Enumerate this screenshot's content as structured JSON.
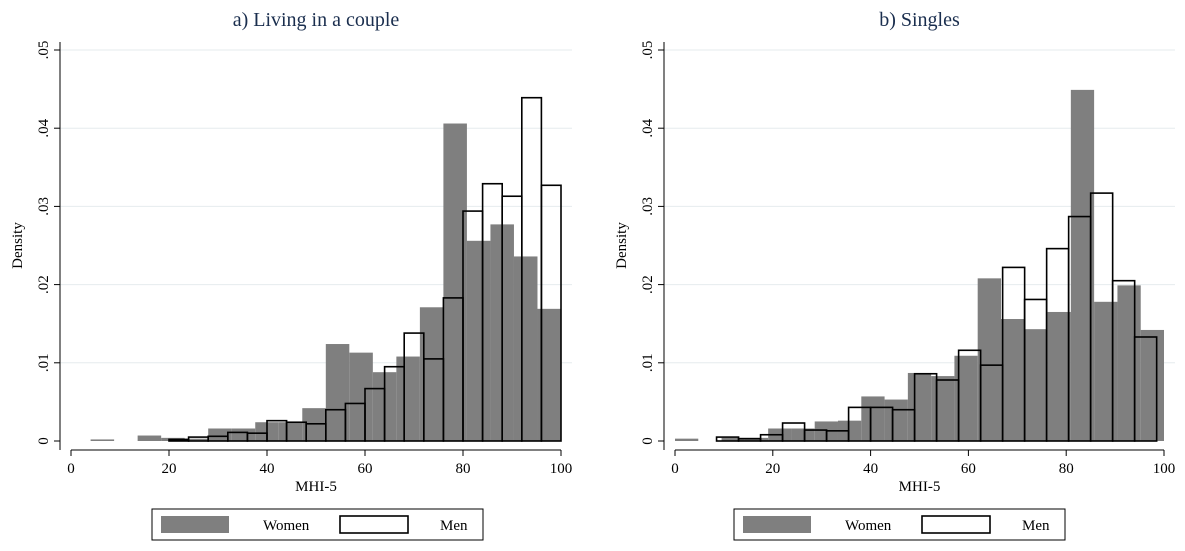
{
  "chart_data": [
    {
      "type": "bar",
      "title": "a) Living in a couple",
      "xlabel": "MHI-5",
      "ylabel": "Density",
      "xlim": [
        0,
        100
      ],
      "ylim": [
        0,
        0.05
      ],
      "x_ticks": [
        "0",
        "20",
        "40",
        "60",
        "80",
        "100"
      ],
      "y_ticks": [
        "0",
        ".01",
        ".02",
        ".03",
        ".04",
        ".05"
      ],
      "grid": true,
      "legend_position": "bottom",
      "series": [
        {
          "name": "Women",
          "color": "#7f7f7f",
          "fill": true,
          "bins": [
            {
              "x0": 4,
              "x1": 8.8,
              "y": 0.0002
            },
            {
              "x0": 13.6,
              "x1": 18.4,
              "y": 0.0007
            },
            {
              "x0": 18.4,
              "x1": 23.2,
              "y": 0.0004
            },
            {
              "x0": 23.2,
              "x1": 28,
              "y": 0.0003
            },
            {
              "x0": 28,
              "x1": 32.8,
              "y": 0.0016
            },
            {
              "x0": 32.8,
              "x1": 37.6,
              "y": 0.0016
            },
            {
              "x0": 37.6,
              "x1": 42.4,
              "y": 0.0024
            },
            {
              "x0": 42.4,
              "x1": 47.2,
              "y": 0.0024
            },
            {
              "x0": 47.2,
              "x1": 52,
              "y": 0.0042
            },
            {
              "x0": 52,
              "x1": 56.8,
              "y": 0.0124
            },
            {
              "x0": 56.8,
              "x1": 61.6,
              "y": 0.0113
            },
            {
              "x0": 61.6,
              "x1": 66.4,
              "y": 0.0088
            },
            {
              "x0": 66.4,
              "x1": 71.2,
              "y": 0.0108
            },
            {
              "x0": 71.2,
              "x1": 76,
              "y": 0.0171
            },
            {
              "x0": 76,
              "x1": 80.8,
              "y": 0.0406
            },
            {
              "x0": 80.8,
              "x1": 85.6,
              "y": 0.0256
            },
            {
              "x0": 85.6,
              "x1": 90.4,
              "y": 0.0277
            },
            {
              "x0": 90.4,
              "x1": 95.2,
              "y": 0.0236
            },
            {
              "x0": 95.2,
              "x1": 100,
              "y": 0.0169
            }
          ]
        },
        {
          "name": "Men",
          "color": "#000000",
          "fill": false,
          "bins": [
            {
              "x0": 20,
              "x1": 24,
              "y": 0.0002
            },
            {
              "x0": 24,
              "x1": 28,
              "y": 0.0005
            },
            {
              "x0": 28,
              "x1": 32,
              "y": 0.0006
            },
            {
              "x0": 32,
              "x1": 36,
              "y": 0.0011
            },
            {
              "x0": 36,
              "x1": 40,
              "y": 0.001
            },
            {
              "x0": 40,
              "x1": 44,
              "y": 0.0026
            },
            {
              "x0": 44,
              "x1": 48,
              "y": 0.0024
            },
            {
              "x0": 48,
              "x1": 52,
              "y": 0.0022
            },
            {
              "x0": 52,
              "x1": 56,
              "y": 0.004
            },
            {
              "x0": 56,
              "x1": 60,
              "y": 0.0048
            },
            {
              "x0": 60,
              "x1": 64,
              "y": 0.0067
            },
            {
              "x0": 64,
              "x1": 68,
              "y": 0.0095
            },
            {
              "x0": 68,
              "x1": 72,
              "y": 0.0138
            },
            {
              "x0": 72,
              "x1": 76,
              "y": 0.0105
            },
            {
              "x0": 76,
              "x1": 80,
              "y": 0.0183
            },
            {
              "x0": 80,
              "x1": 84,
              "y": 0.0294
            },
            {
              "x0": 84,
              "x1": 88,
              "y": 0.0329
            },
            {
              "x0": 88,
              "x1": 92,
              "y": 0.0313
            },
            {
              "x0": 92,
              "x1": 96,
              "y": 0.0439
            },
            {
              "x0": 96,
              "x1": 100,
              "y": 0.0327
            }
          ]
        }
      ]
    },
    {
      "type": "bar",
      "title": "b) Singles",
      "xlabel": "MHI-5",
      "ylabel": "Density",
      "xlim": [
        0,
        100
      ],
      "ylim": [
        0,
        0.05
      ],
      "x_ticks": [
        "0",
        "20",
        "40",
        "60",
        "80",
        "100"
      ],
      "y_ticks": [
        "0",
        ".01",
        ".02",
        ".03",
        ".04",
        ".05"
      ],
      "grid": true,
      "legend_position": "bottom",
      "series": [
        {
          "name": "Women",
          "color": "#7f7f7f",
          "fill": true,
          "bins": [
            {
              "x0": 0,
              "x1": 4.76,
              "y": 0.0003
            },
            {
              "x0": 9.52,
              "x1": 14.29,
              "y": 0.0004
            },
            {
              "x0": 14.29,
              "x1": 19.05,
              "y": 0.0004
            },
            {
              "x0": 19.05,
              "x1": 23.81,
              "y": 0.0016
            },
            {
              "x0": 23.81,
              "x1": 28.57,
              "y": 0.0016
            },
            {
              "x0": 28.57,
              "x1": 33.33,
              "y": 0.0025
            },
            {
              "x0": 33.33,
              "x1": 38.1,
              "y": 0.0026
            },
            {
              "x0": 38.1,
              "x1": 42.86,
              "y": 0.0057
            },
            {
              "x0": 42.86,
              "x1": 47.62,
              "y": 0.0053
            },
            {
              "x0": 47.62,
              "x1": 52.38,
              "y": 0.0087
            },
            {
              "x0": 52.38,
              "x1": 57.14,
              "y": 0.0083
            },
            {
              "x0": 57.14,
              "x1": 61.9,
              "y": 0.0109
            },
            {
              "x0": 61.9,
              "x1": 66.67,
              "y": 0.0208
            },
            {
              "x0": 66.67,
              "x1": 71.43,
              "y": 0.0156
            },
            {
              "x0": 71.43,
              "x1": 76.19,
              "y": 0.0143
            },
            {
              "x0": 76.19,
              "x1": 80.95,
              "y": 0.0165
            },
            {
              "x0": 80.95,
              "x1": 85.71,
              "y": 0.0449
            },
            {
              "x0": 85.71,
              "x1": 90.48,
              "y": 0.0178
            },
            {
              "x0": 90.48,
              "x1": 95.24,
              "y": 0.0199
            },
            {
              "x0": 95.24,
              "x1": 100,
              "y": 0.0142
            }
          ]
        },
        {
          "name": "Men",
          "color": "#000000",
          "fill": false,
          "bins": [
            {
              "x0": 8.5,
              "x1": 13,
              "y": 0.0005
            },
            {
              "x0": 13,
              "x1": 17.5,
              "y": 0.0003
            },
            {
              "x0": 17.5,
              "x1": 22,
              "y": 0.0008
            },
            {
              "x0": 22,
              "x1": 26.5,
              "y": 0.0023
            },
            {
              "x0": 26.5,
              "x1": 31,
              "y": 0.0014
            },
            {
              "x0": 31,
              "x1": 35.5,
              "y": 0.0013
            },
            {
              "x0": 35.5,
              "x1": 40,
              "y": 0.0043
            },
            {
              "x0": 40,
              "x1": 44.5,
              "y": 0.0043
            },
            {
              "x0": 44.5,
              "x1": 49,
              "y": 0.004
            },
            {
              "x0": 49,
              "x1": 53.5,
              "y": 0.0086
            },
            {
              "x0": 53.5,
              "x1": 58,
              "y": 0.0078
            },
            {
              "x0": 58,
              "x1": 62.5,
              "y": 0.0116
            },
            {
              "x0": 62.5,
              "x1": 67,
              "y": 0.0097
            },
            {
              "x0": 67,
              "x1": 71.5,
              "y": 0.0222
            },
            {
              "x0": 71.5,
              "x1": 76,
              "y": 0.0181
            },
            {
              "x0": 76,
              "x1": 80.5,
              "y": 0.0246
            },
            {
              "x0": 80.5,
              "x1": 85,
              "y": 0.0287
            },
            {
              "x0": 85,
              "x1": 89.5,
              "y": 0.0317
            },
            {
              "x0": 89.5,
              "x1": 94,
              "y": 0.0205
            },
            {
              "x0": 94,
              "x1": 98.5,
              "y": 0.0133
            }
          ]
        }
      ]
    }
  ]
}
